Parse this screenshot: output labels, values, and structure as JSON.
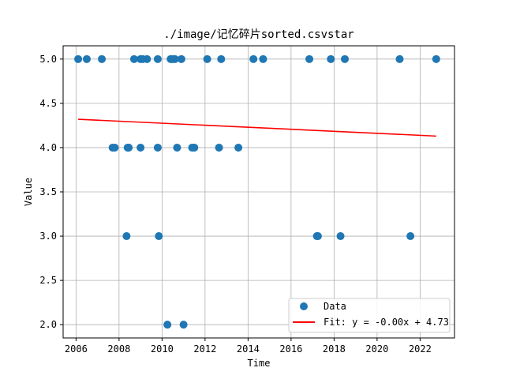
{
  "chart_data": {
    "type": "scatter",
    "title": "./image/记忆碎片sorted.csvstar",
    "xlabel": "Time",
    "ylabel": "Value",
    "xlim": [
      2005.4,
      2023.6
    ],
    "ylim": [
      1.85,
      5.15
    ],
    "xticks": [
      2006,
      2008,
      2010,
      2012,
      2014,
      2016,
      2018,
      2020,
      2022
    ],
    "yticks": [
      2.0,
      2.5,
      3.0,
      3.5,
      4.0,
      4.5,
      5.0
    ],
    "xtick_labels": [
      "2006",
      "2008",
      "2010",
      "2012",
      "2014",
      "2016",
      "2018",
      "2020",
      "2022"
    ],
    "ytick_labels": [
      "2.0",
      "2.5",
      "3.0",
      "3.5",
      "4.0",
      "4.5",
      "5.0"
    ],
    "grid": true,
    "legend_position": "lower-right",
    "colors": {
      "data": "#1f77b4",
      "fit": "#ff0000",
      "grid": "#b0b0b0"
    },
    "series": [
      {
        "name": "Data",
        "type": "scatter",
        "points": [
          [
            2006.1,
            5.0
          ],
          [
            2006.5,
            5.0
          ],
          [
            2007.2,
            5.0
          ],
          [
            2008.7,
            5.0
          ],
          [
            2009.0,
            5.0
          ],
          [
            2009.1,
            5.0
          ],
          [
            2009.3,
            5.0
          ],
          [
            2009.8,
            5.0
          ],
          [
            2010.4,
            5.0
          ],
          [
            2010.5,
            5.0
          ],
          [
            2010.6,
            5.0
          ],
          [
            2010.9,
            5.0
          ],
          [
            2012.1,
            5.0
          ],
          [
            2012.75,
            5.0
          ],
          [
            2014.25,
            5.0
          ],
          [
            2014.7,
            5.0
          ],
          [
            2016.85,
            5.0
          ],
          [
            2017.85,
            5.0
          ],
          [
            2018.5,
            5.0
          ],
          [
            2021.05,
            5.0
          ],
          [
            2022.75,
            5.0
          ],
          [
            2007.7,
            4.0
          ],
          [
            2007.8,
            4.0
          ],
          [
            2008.4,
            4.0
          ],
          [
            2008.45,
            4.0
          ],
          [
            2009.0,
            4.0
          ],
          [
            2009.8,
            4.0
          ],
          [
            2010.7,
            4.0
          ],
          [
            2011.4,
            4.0
          ],
          [
            2011.5,
            4.0
          ],
          [
            2012.65,
            4.0
          ],
          [
            2013.55,
            4.0
          ],
          [
            2008.35,
            3.0
          ],
          [
            2009.85,
            3.0
          ],
          [
            2017.2,
            3.0
          ],
          [
            2017.25,
            3.0
          ],
          [
            2018.3,
            3.0
          ],
          [
            2021.55,
            3.0
          ],
          [
            2010.25,
            2.0
          ],
          [
            2011.0,
            2.0
          ]
        ]
      },
      {
        "name": "Fit: y = -0.00x + 4.73",
        "type": "line",
        "points": [
          [
            2006.1,
            4.32
          ],
          [
            2022.75,
            4.13
          ]
        ]
      }
    ]
  }
}
